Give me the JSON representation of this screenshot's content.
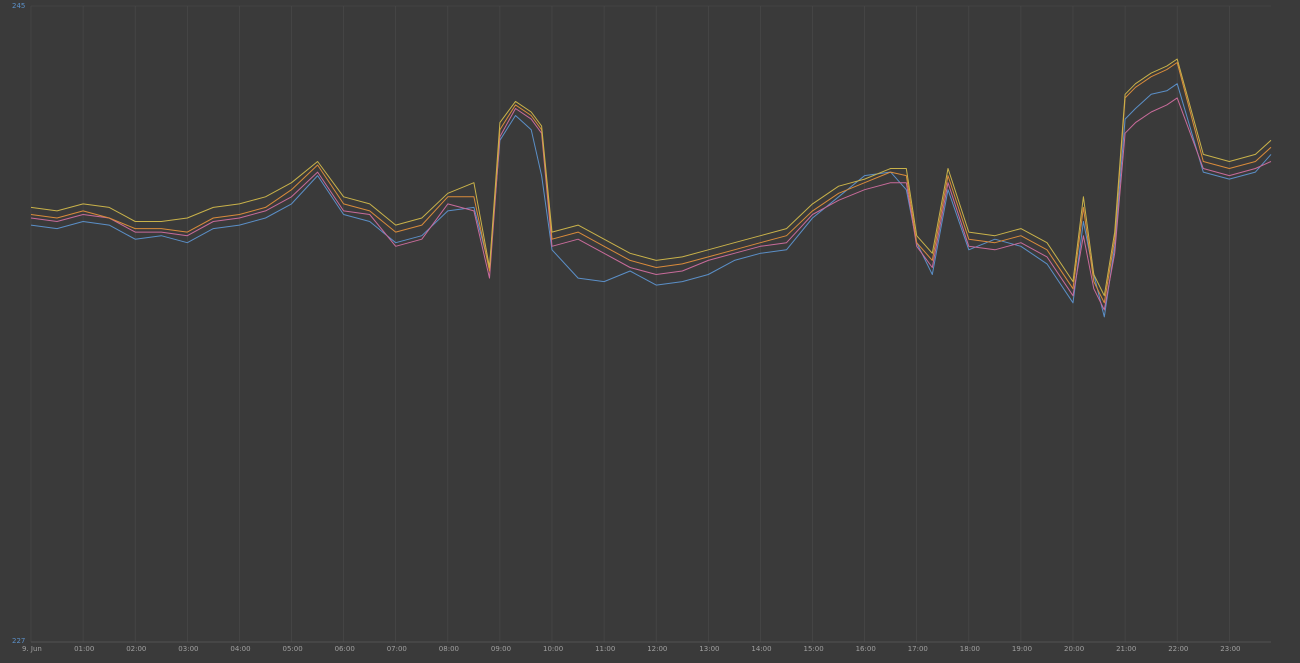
{
  "colors": {
    "background": "#3a3a3a",
    "grid": "#4b4b4b",
    "axis": "#5a5a5a",
    "series_blue": "#5b8fc7",
    "series_pink": "#c86b9a",
    "series_orange": "#d98b3a",
    "series_yellow": "#c9b24a"
  },
  "chart_data": {
    "type": "line",
    "grid": true,
    "legend": "none",
    "ylim": [
      227,
      245
    ],
    "y_ticks": [
      "245",
      "227"
    ],
    "x_ticks": [
      "9. Jun",
      "01:00",
      "02:00",
      "03:00",
      "04:00",
      "05:00",
      "06:00",
      "07:00",
      "08:00",
      "09:00",
      "10:00",
      "11:00",
      "12:00",
      "13:00",
      "14:00",
      "15:00",
      "16:00",
      "17:00",
      "18:00",
      "19:00",
      "20:00",
      "21:00",
      "22:00",
      "23:00"
    ],
    "x_hours": [
      0,
      0.5,
      1,
      1.5,
      2,
      2.5,
      3,
      3.5,
      4,
      4.5,
      5,
      5.5,
      6,
      6.5,
      7,
      7.5,
      8,
      8.5,
      8.8,
      9,
      9.3,
      9.6,
      9.8,
      10,
      10.5,
      11,
      11.5,
      12,
      12.5,
      13,
      13.5,
      14,
      14.5,
      15,
      15.5,
      16,
      16.5,
      16.8,
      17,
      17.3,
      17.6,
      18,
      18.5,
      19,
      19.5,
      20,
      20.2,
      20.4,
      20.6,
      20.8,
      21,
      21.2,
      21.5,
      21.8,
      22,
      22.5,
      23,
      23.5,
      23.8
    ],
    "series": [
      {
        "color": "#5b8fc7",
        "values": [
          238.8,
          238.7,
          238.9,
          238.8,
          238.4,
          238.5,
          238.3,
          238.7,
          238.8,
          239.0,
          239.4,
          240.2,
          239.1,
          238.9,
          238.3,
          238.5,
          239.2,
          239.3,
          237.6,
          241.2,
          241.9,
          241.5,
          240.2,
          238.1,
          237.3,
          237.2,
          237.5,
          237.1,
          237.2,
          237.4,
          237.8,
          238.0,
          238.1,
          239.0,
          239.6,
          240.2,
          240.3,
          239.8,
          238.3,
          237.4,
          239.8,
          238.1,
          238.4,
          238.2,
          237.7,
          236.6,
          238.9,
          237.4,
          236.2,
          238.2,
          241.8,
          242.1,
          242.5,
          242.6,
          242.8,
          240.3,
          240.1,
          240.3,
          240.8
        ]
      },
      {
        "color": "#c86b9a",
        "values": [
          239.0,
          238.9,
          239.1,
          239.0,
          238.6,
          238.6,
          238.5,
          238.9,
          239.0,
          239.2,
          239.6,
          240.3,
          239.2,
          239.1,
          238.2,
          238.4,
          239.4,
          239.2,
          237.3,
          241.3,
          242.1,
          241.8,
          241.4,
          238.2,
          238.4,
          238.0,
          237.6,
          237.4,
          237.5,
          237.8,
          238.0,
          238.2,
          238.3,
          239.1,
          239.5,
          239.8,
          240.0,
          240.0,
          238.2,
          237.6,
          240.0,
          238.2,
          238.1,
          238.3,
          237.9,
          236.8,
          238.5,
          237.0,
          236.4,
          238.0,
          241.4,
          241.7,
          242.0,
          242.2,
          242.4,
          240.4,
          240.2,
          240.4,
          240.6
        ]
      },
      {
        "color": "#d98b3a",
        "values": [
          239.1,
          239.0,
          239.2,
          239.0,
          238.7,
          238.7,
          238.6,
          239.0,
          239.1,
          239.3,
          239.8,
          240.5,
          239.4,
          239.2,
          238.6,
          238.8,
          239.6,
          239.6,
          237.5,
          241.5,
          242.2,
          241.9,
          241.5,
          238.4,
          238.6,
          238.2,
          237.8,
          237.6,
          237.7,
          237.9,
          238.1,
          238.3,
          238.5,
          239.2,
          239.7,
          240.0,
          240.3,
          240.2,
          238.3,
          237.8,
          240.2,
          238.4,
          238.3,
          238.5,
          238.1,
          237.0,
          239.3,
          237.2,
          236.6,
          238.4,
          242.4,
          242.7,
          243.0,
          243.2,
          243.4,
          240.6,
          240.4,
          240.6,
          241.0
        ]
      },
      {
        "color": "#c9b24a",
        "values": [
          239.3,
          239.2,
          239.4,
          239.3,
          238.9,
          238.9,
          239.0,
          239.3,
          239.4,
          239.6,
          240.0,
          240.6,
          239.6,
          239.4,
          238.8,
          239.0,
          239.7,
          240.0,
          237.6,
          241.7,
          242.3,
          242.0,
          241.6,
          238.6,
          238.8,
          238.4,
          238.0,
          237.8,
          237.9,
          238.1,
          238.3,
          238.5,
          238.7,
          239.4,
          239.9,
          240.1,
          240.4,
          240.4,
          238.5,
          238.0,
          240.4,
          238.6,
          238.5,
          238.7,
          238.3,
          237.2,
          239.6,
          237.4,
          236.8,
          238.6,
          242.5,
          242.8,
          243.1,
          243.3,
          243.5,
          240.8,
          240.6,
          240.8,
          241.2
        ]
      }
    ]
  }
}
